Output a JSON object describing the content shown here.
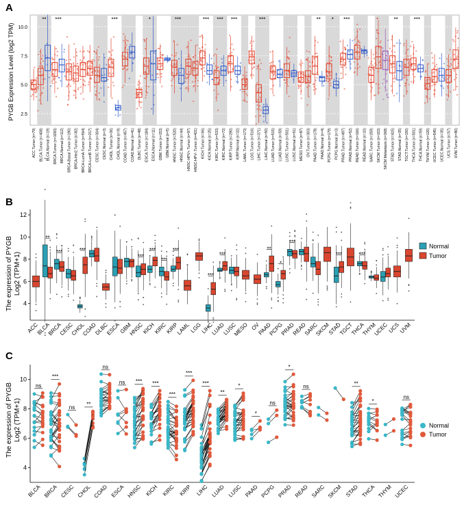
{
  "colors": {
    "normal_b": "#2aa0b4",
    "tumor_b": "#d9462f",
    "normal_c": "#3ab7c8",
    "tumor_c": "#e05a3c",
    "a_tumor": "#e2412a",
    "a_normal": "#2f59c8",
    "a_met": "#9b59b6",
    "band": "#d9d9d9"
  },
  "chart_data": [
    {
      "panel": "A",
      "type": "box",
      "ylabel": "PYGB Expression Level (log2 TPM)",
      "yticks": [
        "2.5",
        "5.0",
        "7.5",
        "10.0"
      ],
      "ylim": [
        1.5,
        11.0
      ],
      "categories": [
        "ACC.Tumor (n=79)",
        "BLCA.Tumor (n=408)",
        "BLCA.Normal (n=19)",
        "BRCA.Tumor (n=1093)",
        "BRCA.Normal (n=112)",
        "BRCA-Basal.Tumor (n=190)",
        "BRCA-Her2.Tumor (n=82)",
        "BRCA-LumA.Tumor (n=564)",
        "BRCA-LumB.Tumor (n=217)",
        "CESC.Tumor (n=304)",
        "CESC.Normal (n=3)",
        "CHOL.Tumor (n=36)",
        "CHOL.Normal (n=9)",
        "COAD.Tumor (n=457)",
        "COAD.Normal (n=41)",
        "DLBC.Tumor (n=48)",
        "ESCA.Tumor (n=184)",
        "ESCA.Normal (n=11)",
        "GBM.Tumor (n=153)",
        "GBM.Normal (n=5)",
        "HNSC.Tumor (n=520)",
        "HNSC.Normal (n=44)",
        "HNSC-HPV+.Tumor (n=97)",
        "HNSC-HPV-.Tumor (n=421)",
        "KICH.Tumor (n=66)",
        "KICH.Normal (n=25)",
        "KIRC.Tumor (n=533)",
        "KIRC.Normal (n=72)",
        "KIRP.Tumor (n=290)",
        "KIRP.Normal (n=32)",
        "LAML.Tumor (n=173)",
        "LGG.Tumor (n=516)",
        "LIHC.Tumor (n=371)",
        "LIHC.Normal (n=50)",
        "LUAD.Tumor (n=515)",
        "LUAD.Normal (n=59)",
        "LUSC.Tumor (n=501)",
        "LUSC.Normal (n=51)",
        "MESO.Tumor (n=87)",
        "OV.Tumor (n=303)",
        "PAAD.Tumor (n=178)",
        "PAAD.Normal (n=4)",
        "PCPG.Tumor (n=179)",
        "PCPG.Normal (n=3)",
        "PRAD.Tumor (n=497)",
        "PRAD.Normal (n=52)",
        "READ.Tumor (n=166)",
        "READ.Normal (n=10)",
        "SARC.Tumor (n=259)",
        "SKCM.Tumor (n=103)",
        "SKCM.Metastasis (n=368)",
        "STAD.Tumor (n=415)",
        "STAD.Normal (n=35)",
        "TGCT.Tumor (n=150)",
        "THCA.Tumor (n=501)",
        "THCA.Normal (n=59)",
        "THYM.Tumor (n=120)",
        "UCEC.Tumor (n=545)",
        "UCEC.Normal (n=35)",
        "UCS.Tumor (n=57)",
        "UVM.Tumor (n=80)"
      ],
      "group": [
        "T",
        "T",
        "N",
        "T",
        "N",
        "T",
        "T",
        "T",
        "T",
        "T",
        "N",
        "T",
        "N",
        "T",
        "N",
        "T",
        "T",
        "N",
        "T",
        "N",
        "T",
        "N",
        "T",
        "T",
        "T",
        "N",
        "T",
        "N",
        "T",
        "N",
        "T",
        "T",
        "T",
        "N",
        "T",
        "N",
        "T",
        "N",
        "T",
        "T",
        "T",
        "N",
        "T",
        "N",
        "T",
        "N",
        "T",
        "N",
        "T",
        "T",
        "M",
        "T",
        "N",
        "T",
        "T",
        "N",
        "T",
        "T",
        "N",
        "T",
        "T"
      ],
      "medians": [
        5.0,
        5.8,
        7.3,
        6.3,
        6.7,
        6.1,
        6.0,
        6.3,
        6.4,
        5.8,
        5.6,
        6.5,
        3.0,
        7.2,
        7.8,
        4.3,
        6.6,
        6.8,
        6.8,
        7.2,
        6.5,
        5.8,
        6.6,
        6.4,
        7.3,
        6.2,
        5.6,
        6.2,
        6.8,
        6.2,
        5.0,
        7.4,
        4.3,
        2.8,
        6.1,
        5.9,
        6.2,
        6.0,
        5.6,
        5.7,
        6.6,
        5.6,
        6.1,
        5.0,
        7.2,
        7.6,
        7.8,
        7.9,
        5.8,
        7.4,
        7.1,
        6.8,
        6.2,
        6.5,
        6.8,
        6.4,
        5.1,
        5.7,
        5.8,
        5.8,
        7.2
      ],
      "q1": [
        4.6,
        5.0,
        6.2,
        5.7,
        6.1,
        5.4,
        5.3,
        5.7,
        5.8,
        5.2,
        5.3,
        5.7,
        2.8,
        6.6,
        7.3,
        3.9,
        5.9,
        5.4,
        6.3,
        7.1,
        5.8,
        5.1,
        5.9,
        5.8,
        6.7,
        5.9,
        5.0,
        5.8,
        6.1,
        5.9,
        4.6,
        6.8,
        3.5,
        2.5,
        5.5,
        5.6,
        5.6,
        5.7,
        5.2,
        5.2,
        5.9,
        5.3,
        5.5,
        4.7,
        6.7,
        7.2,
        7.2,
        7.7,
        5.2,
        6.4,
        6.3,
        6.0,
        5.4,
        5.8,
        6.3,
        6.1,
        4.6,
        5.2,
        5.3,
        5.2,
        6.4
      ],
      "q3": [
        5.4,
        6.4,
        8.4,
        6.9,
        7.2,
        6.8,
        6.6,
        6.9,
        7.0,
        6.5,
        6.4,
        7.2,
        3.2,
        7.8,
        8.3,
        4.6,
        7.3,
        7.9,
        7.3,
        7.3,
        7.1,
        6.4,
        7.2,
        7.0,
        7.9,
        6.7,
        6.2,
        6.6,
        7.5,
        6.6,
        5.5,
        7.9,
        5.0,
        3.1,
        6.6,
        6.3,
        6.8,
        6.2,
        6.1,
        6.2,
        7.4,
        5.7,
        6.8,
        5.3,
        7.7,
        8.0,
        8.4,
        8.0,
        6.5,
        8.3,
        7.9,
        7.5,
        7.0,
        7.2,
        7.3,
        6.7,
        5.6,
        6.3,
        6.4,
        6.3,
        8.0
      ],
      "significance": [
        {
          "after": "BLCA",
          "label": "**"
        },
        {
          "after": "BRCA",
          "label": "***"
        },
        {
          "after": "CHOL",
          "label": "***"
        },
        {
          "after": "ESCA",
          "label": "*"
        },
        {
          "after": "HNSC",
          "label": "***"
        },
        {
          "after": "KICH",
          "label": "***"
        },
        {
          "after": "KIRC",
          "label": "***"
        },
        {
          "after": "KIRP",
          "label": "***"
        },
        {
          "after": "LIHC",
          "label": "***"
        },
        {
          "after": "PAAD",
          "label": "**"
        },
        {
          "after": "PCPG",
          "label": "*"
        },
        {
          "after": "PRAD",
          "label": "***"
        },
        {
          "after": "STAD",
          "label": "**"
        },
        {
          "after": "THCA",
          "label": "***"
        }
      ],
      "sig_positions": [
        1,
        3,
        11,
        16,
        20,
        24,
        26,
        28,
        32,
        40,
        42,
        44,
        51,
        54
      ]
    },
    {
      "panel": "B",
      "type": "box",
      "ylabel_line1": "The expression of PYGB",
      "ylabel_line2": "Log2 (TPM+1)",
      "yticks": [
        "4",
        "6",
        "8",
        "10",
        "12"
      ],
      "ylim": [
        2.5,
        12.5
      ],
      "categories": [
        "ACC",
        "BLCA",
        "BRCA",
        "CESC",
        "CHOL",
        "COAD",
        "DLBC",
        "ESCA",
        "GBM",
        "HNSC",
        "KICH",
        "KIRC",
        "KIRP",
        "LAML",
        "LGG",
        "LIHC",
        "LUAD",
        "LUSC",
        "MESO",
        "OV",
        "PAAD",
        "PCPG",
        "PRAD",
        "READ",
        "SARC",
        "SKCM",
        "STAD",
        "TGCT",
        "THCA",
        "THYM",
        "UCEC",
        "UCS",
        "UVM"
      ],
      "normal": [
        null,
        [
          6.4,
          7.4,
          9.3
        ],
        [
          7.1,
          7.6,
          8.0
        ],
        [
          6.3,
          6.7,
          7.1
        ],
        [
          3.6,
          3.75,
          3.9
        ],
        [
          8.2,
          8.5,
          8.8
        ],
        null,
        [
          6.5,
          7.3,
          8.2
        ],
        [
          7.3,
          7.8,
          8.1
        ],
        [
          6.4,
          6.8,
          7.4
        ],
        [
          6.8,
          7.1,
          7.4
        ],
        [
          6.5,
          6.9,
          7.3
        ],
        [
          6.9,
          7.1,
          7.4
        ],
        null,
        null,
        [
          3.3,
          3.6,
          3.9
        ],
        [
          6.9,
          7.0,
          7.2
        ],
        [
          6.7,
          7.0,
          7.3
        ],
        null,
        null,
        [
          6.4,
          6.6,
          6.8
        ],
        [
          5.5,
          5.7,
          6.0
        ],
        [
          8.3,
          8.7,
          8.9
        ],
        [
          8.4,
          8.7,
          8.9
        ],
        [
          7.3,
          7.6,
          8.2
        ],
        null,
        [
          5.9,
          6.5,
          7.3
        ],
        null,
        [
          7.4,
          7.6,
          7.8
        ],
        [
          6.3,
          6.4,
          6.5
        ],
        [
          6.0,
          6.4,
          6.9
        ],
        null,
        null
      ],
      "tumor": [
        [
          5.5,
          6.0,
          6.5
        ],
        [
          6.3,
          6.7,
          7.3
        ],
        [
          6.9,
          7.3,
          7.8
        ],
        [
          6.1,
          6.5,
          7.0
        ],
        [
          6.7,
          7.5,
          8.2
        ],
        [
          7.8,
          8.3,
          9.0
        ],
        [
          5.2,
          5.5,
          5.8
        ],
        [
          6.7,
          7.2,
          8.0
        ],
        [
          7.3,
          7.8,
          8.0
        ],
        [
          6.6,
          7.1,
          7.6
        ],
        [
          7.4,
          7.9,
          8.2
        ],
        [
          6.1,
          6.4,
          6.9
        ],
        [
          7.1,
          7.7,
          8.2
        ],
        [
          5.2,
          5.6,
          6.1
        ],
        [
          7.9,
          8.3,
          8.6
        ],
        [
          4.8,
          5.3,
          5.9
        ],
        [
          7.0,
          7.4,
          7.8
        ],
        [
          6.5,
          6.9,
          7.3
        ],
        [
          6.2,
          6.5,
          7.0
        ],
        [
          5.8,
          6.2,
          6.6
        ],
        [
          6.9,
          7.6,
          8.3
        ],
        [
          6.2,
          6.7,
          7.0
        ],
        [
          8.1,
          8.5,
          8.8
        ],
        [
          7.8,
          8.5,
          9.1
        ],
        [
          6.6,
          7.1,
          7.8
        ],
        [
          7.8,
          8.6,
          9.1
        ],
        [
          6.8,
          7.3,
          7.8
        ],
        [
          7.4,
          8.2,
          9.0
        ],
        [
          7.1,
          7.4,
          7.8
        ],
        [
          6.1,
          6.3,
          6.6
        ],
        [
          6.4,
          6.7,
          7.2
        ],
        [
          6.4,
          6.9,
          7.4
        ],
        [
          7.8,
          8.3,
          8.9
        ]
      ],
      "significance": [
        {
          "cat": "BLCA",
          "label": "**"
        },
        {
          "cat": "BRCA",
          "label": "***"
        },
        {
          "cat": "CHOL",
          "label": "***"
        },
        {
          "cat": "HNSC",
          "label": "***"
        },
        {
          "cat": "KICH",
          "label": "***"
        },
        {
          "cat": "KIRC",
          "label": "***"
        },
        {
          "cat": "KIRP",
          "label": "***"
        },
        {
          "cat": "LIHC",
          "label": "***"
        },
        {
          "cat": "LUAD",
          "label": "***"
        },
        {
          "cat": "PAAD",
          "label": "**"
        },
        {
          "cat": "PCPG",
          "label": "*"
        },
        {
          "cat": "PRAD",
          "label": "***"
        },
        {
          "cat": "STAD",
          "label": "***"
        },
        {
          "cat": "THCA",
          "label": "***"
        }
      ],
      "sig_index": [
        1,
        2,
        4,
        9,
        10,
        11,
        12,
        15,
        16,
        20,
        21,
        22,
        26,
        28
      ],
      "legend": [
        "Normal",
        "Tumor"
      ]
    },
    {
      "panel": "C",
      "type": "scatter",
      "ylabel_line1": "The expression of PYGB",
      "ylabel_line2": "Log2 (TPM+1)",
      "yticks": [
        "4",
        "6",
        "8",
        "10"
      ],
      "ylim": [
        3.0,
        11.0
      ],
      "categories": [
        "BLCA",
        "BRCA",
        "CESC",
        "CHOL",
        "COAD",
        "ESCA",
        "HNSC",
        "KICH",
        "KIRC",
        "KIRP",
        "LIHC",
        "LUAD",
        "LUSC",
        "PAAD",
        "PCPG",
        "PRAD",
        "READ",
        "SARC",
        "SKCM",
        "STAD",
        "THCA",
        "THYM",
        "UCEC"
      ],
      "pairs": [
        18,
        30,
        3,
        9,
        25,
        8,
        40,
        24,
        30,
        30,
        50,
        30,
        30,
        4,
        3,
        30,
        8,
        2,
        1,
        30,
        12,
        2,
        20
      ],
      "normal_center": [
        7.2,
        7.3,
        7.6,
        4.2,
        8.8,
        7.6,
        7.0,
        7.1,
        6.8,
        7.2,
        4.8,
        7.1,
        7.2,
        6.8,
        6.6,
        8.2,
        8.4,
        8.5,
        9.5,
        6.8,
        7.4,
        6.8,
        6.9
      ],
      "tumor_center": [
        7.5,
        7.4,
        7.0,
        7.3,
        8.9,
        7.5,
        7.6,
        7.8,
        6.6,
        7.9,
        6.4,
        7.6,
        7.6,
        7.1,
        7.0,
        8.3,
        8.3,
        8.0,
        8.8,
        7.4,
        7.4,
        6.9,
        6.8
      ],
      "spread": [
        1.1,
        1.3,
        0.6,
        0.5,
        0.8,
        1.1,
        1.0,
        0.8,
        0.8,
        1.0,
        1.1,
        0.6,
        0.7,
        0.5,
        0.6,
        0.8,
        0.6,
        0.8,
        0.2,
        0.9,
        0.7,
        0.4,
        0.8
      ],
      "significance": [
        "ns",
        "***",
        "ns",
        "**",
        "ns",
        "ns",
        "***",
        "***",
        "***",
        "***",
        "***",
        "**",
        "*",
        "*",
        "ns",
        "*",
        "ns",
        "",
        "",
        "**",
        "*",
        "",
        "ns"
      ],
      "legend": [
        "Normal",
        "Tumor"
      ]
    }
  ],
  "panel_labels": [
    "A",
    "B",
    "C"
  ]
}
